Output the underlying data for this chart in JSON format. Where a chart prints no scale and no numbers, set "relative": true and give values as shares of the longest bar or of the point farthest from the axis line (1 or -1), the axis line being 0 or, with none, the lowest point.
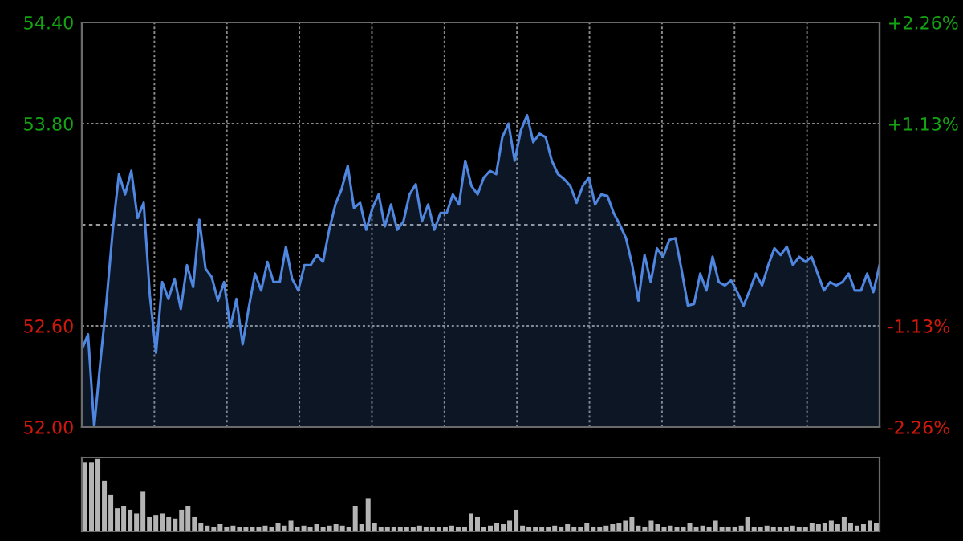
{
  "chart_data": [
    {
      "type": "area",
      "categories": [
        null,
        null,
        null,
        null,
        null,
        null,
        null,
        null,
        null,
        null,
        null,
        null,
        null,
        null,
        null,
        null,
        null,
        null,
        null,
        null,
        null,
        null,
        null,
        null,
        null,
        null,
        null,
        null,
        null,
        null,
        null,
        null,
        null,
        null,
        null,
        null,
        null,
        null,
        null,
        null,
        null,
        null,
        null,
        null,
        null,
        null,
        null,
        null,
        null,
        null,
        null,
        null,
        null,
        null,
        null,
        null,
        null,
        null,
        null,
        null,
        null,
        null,
        null,
        null,
        null,
        null,
        null,
        null,
        null,
        null,
        null,
        null,
        null,
        null,
        null,
        null,
        null,
        null,
        null,
        null,
        null,
        null,
        null,
        null,
        null,
        null,
        null,
        null,
        null,
        null,
        null,
        null,
        null,
        null,
        null,
        null,
        null,
        null,
        null,
        null,
        null,
        null,
        null,
        null,
        null,
        null,
        null,
        null,
        null,
        null,
        null,
        null,
        null,
        null,
        null,
        null,
        null,
        null,
        null,
        null,
        null,
        null,
        null,
        null,
        null,
        null,
        null,
        null,
        null,
        null
      ],
      "series": [
        {
          "color": "#4f86e0",
          "values": [
            52.46,
            52.55,
            52.0,
            52.39,
            52.75,
            53.17,
            53.5,
            53.38,
            53.52,
            53.24,
            53.33,
            52.78,
            52.44,
            52.86,
            52.76,
            52.88,
            52.7,
            52.96,
            52.83,
            53.23,
            52.94,
            52.89,
            52.75,
            52.86,
            52.59,
            52.76,
            52.49,
            52.71,
            52.91,
            52.81,
            52.98,
            52.86,
            52.86,
            53.07,
            52.88,
            52.81,
            52.96,
            52.96,
            53.02,
            52.98,
            53.17,
            53.32,
            53.41,
            53.55,
            53.3,
            53.33,
            53.17,
            53.3,
            53.38,
            53.19,
            53.32,
            53.17,
            53.22,
            53.38,
            53.44,
            53.22,
            53.32,
            53.17,
            53.27,
            53.27,
            53.38,
            53.32,
            53.58,
            53.43,
            53.38,
            53.48,
            53.52,
            53.5,
            53.72,
            53.8,
            53.58,
            53.76,
            53.85,
            53.69,
            53.74,
            53.72,
            53.58,
            53.5,
            53.47,
            53.43,
            53.33,
            53.43,
            53.48,
            53.32,
            53.38,
            53.37,
            53.27,
            53.2,
            53.12,
            52.96,
            52.75,
            53.02,
            52.86,
            53.06,
            53.01,
            53.11,
            53.12,
            52.93,
            52.72,
            52.73,
            52.91,
            52.81,
            53.01,
            52.86,
            52.84,
            52.87,
            52.8,
            52.72,
            52.81,
            52.91,
            52.84,
            52.96,
            53.06,
            53.02,
            53.07,
            52.96,
            53.01,
            52.98,
            53.01,
            52.91,
            52.81,
            52.86,
            52.84,
            52.86,
            52.91,
            52.81,
            52.81,
            52.91,
            52.8,
            52.96
          ]
        }
      ],
      "ylim": [
        52.0,
        54.4
      ],
      "yticks": [
        {
          "value": 52.0,
          "label": "52.00"
        },
        {
          "value": 52.6,
          "label": "52.60"
        },
        {
          "value": 53.8,
          "label": "53.80"
        },
        {
          "value": 54.4,
          "label": "54.40"
        }
      ],
      "y2lim": [
        -2.26,
        2.26
      ],
      "y2ticks": [
        {
          "value": -2.26,
          "label": "-2.26%"
        },
        {
          "value": -1.13,
          "label": "-1.13%"
        },
        {
          "value": 1.13,
          "label": "+1.13%"
        },
        {
          "value": 2.26,
          "label": "+2.26%"
        }
      ],
      "ref_lines": [
        {
          "axis": "y",
          "value": 53.2,
          "label": null,
          "color": "#9a9a9a",
          "line_style": "dashed"
        }
      ],
      "grid": true
    },
    {
      "type": "bar",
      "relative": true,
      "categories": [
        null,
        null,
        null,
        null,
        null,
        null,
        null,
        null,
        null,
        null,
        null,
        null,
        null,
        null,
        null,
        null,
        null,
        null,
        null,
        null,
        null,
        null,
        null,
        null,
        null,
        null,
        null,
        null,
        null,
        null,
        null,
        null,
        null,
        null,
        null,
        null,
        null,
        null,
        null,
        null,
        null,
        null,
        null,
        null,
        null,
        null,
        null,
        null,
        null,
        null,
        null,
        null,
        null,
        null,
        null,
        null,
        null,
        null,
        null,
        null,
        null,
        null,
        null,
        null,
        null,
        null,
        null,
        null,
        null,
        null,
        null,
        null,
        null,
        null,
        null,
        null,
        null,
        null,
        null,
        null,
        null,
        null,
        null,
        null,
        null,
        null,
        null,
        null,
        null,
        null,
        null,
        null,
        null,
        null,
        null,
        null,
        null,
        null,
        null,
        null,
        null,
        null,
        null,
        null,
        null,
        null,
        null,
        null,
        null,
        null,
        null,
        null,
        null,
        null,
        null,
        null,
        null,
        null,
        null,
        null,
        null,
        null,
        null,
        null
      ],
      "series": [
        {
          "color": "#b4b4b4",
          "values": [
            0.95,
            0.95,
            1.0,
            0.7,
            0.5,
            0.32,
            0.35,
            0.3,
            0.25,
            0.55,
            0.2,
            0.22,
            0.25,
            0.2,
            0.18,
            0.3,
            0.35,
            0.2,
            0.12,
            0.08,
            0.06,
            0.1,
            0.06,
            0.08,
            0.06,
            0.06,
            0.06,
            0.06,
            0.08,
            0.06,
            0.12,
            0.08,
            0.15,
            0.06,
            0.08,
            0.06,
            0.1,
            0.06,
            0.08,
            0.1,
            0.08,
            0.06,
            0.35,
            0.1,
            0.45,
            0.12,
            0.06,
            0.06,
            0.06,
            0.06,
            0.06,
            0.06,
            0.08,
            0.06,
            0.06,
            0.06,
            0.06,
            0.08,
            0.06,
            0.06,
            0.25,
            0.2,
            0.06,
            0.08,
            0.12,
            0.1,
            0.15,
            0.3,
            0.08,
            0.06,
            0.06,
            0.06,
            0.06,
            0.08,
            0.06,
            0.1,
            0.06,
            0.06,
            0.12,
            0.06,
            0.06,
            0.08,
            0.1,
            0.12,
            0.15,
            0.2,
            0.08,
            0.06,
            0.15,
            0.1,
            0.06,
            0.08,
            0.06,
            0.06,
            0.12,
            0.06,
            0.08,
            0.06,
            0.15,
            0.06,
            0.06,
            0.06,
            0.08,
            0.2,
            0.06,
            0.06,
            0.08,
            0.06,
            0.06,
            0.06,
            0.08,
            0.06,
            0.06,
            0.12,
            0.1,
            0.12,
            0.15,
            0.1,
            0.2,
            0.12,
            0.08,
            0.1,
            0.15,
            0.12
          ]
        }
      ]
    }
  ]
}
